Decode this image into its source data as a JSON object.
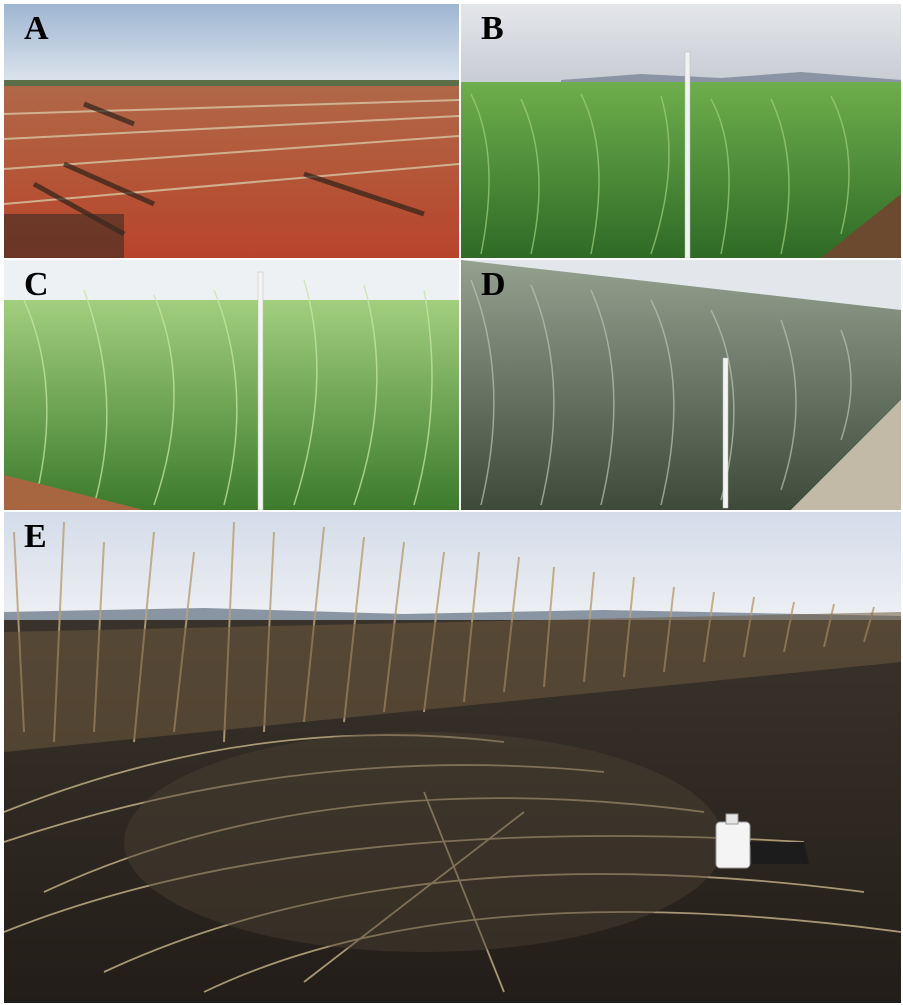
{
  "figure": {
    "panels": [
      {
        "label": "A",
        "scene": "harvested-field-bare-soil"
      },
      {
        "label": "B",
        "scene": "young-sugarcane-with-pole"
      },
      {
        "label": "C",
        "scene": "tall-green-sugarcane-with-pole"
      },
      {
        "label": "D",
        "scene": "mature-grey-green-sugarcane-with-pole"
      },
      {
        "label": "E",
        "scene": "burnt-sugarcane-field"
      }
    ]
  },
  "colors": {
    "sky": "#c9d8ea",
    "soil_red": "#b2502a",
    "cane_green": "#4f8f3a",
    "cane_light": "#8cbf6a",
    "cane_grey": "#7f8b7c",
    "burnt_dark": "#2a2520",
    "burnt_straw": "#a6916a"
  }
}
